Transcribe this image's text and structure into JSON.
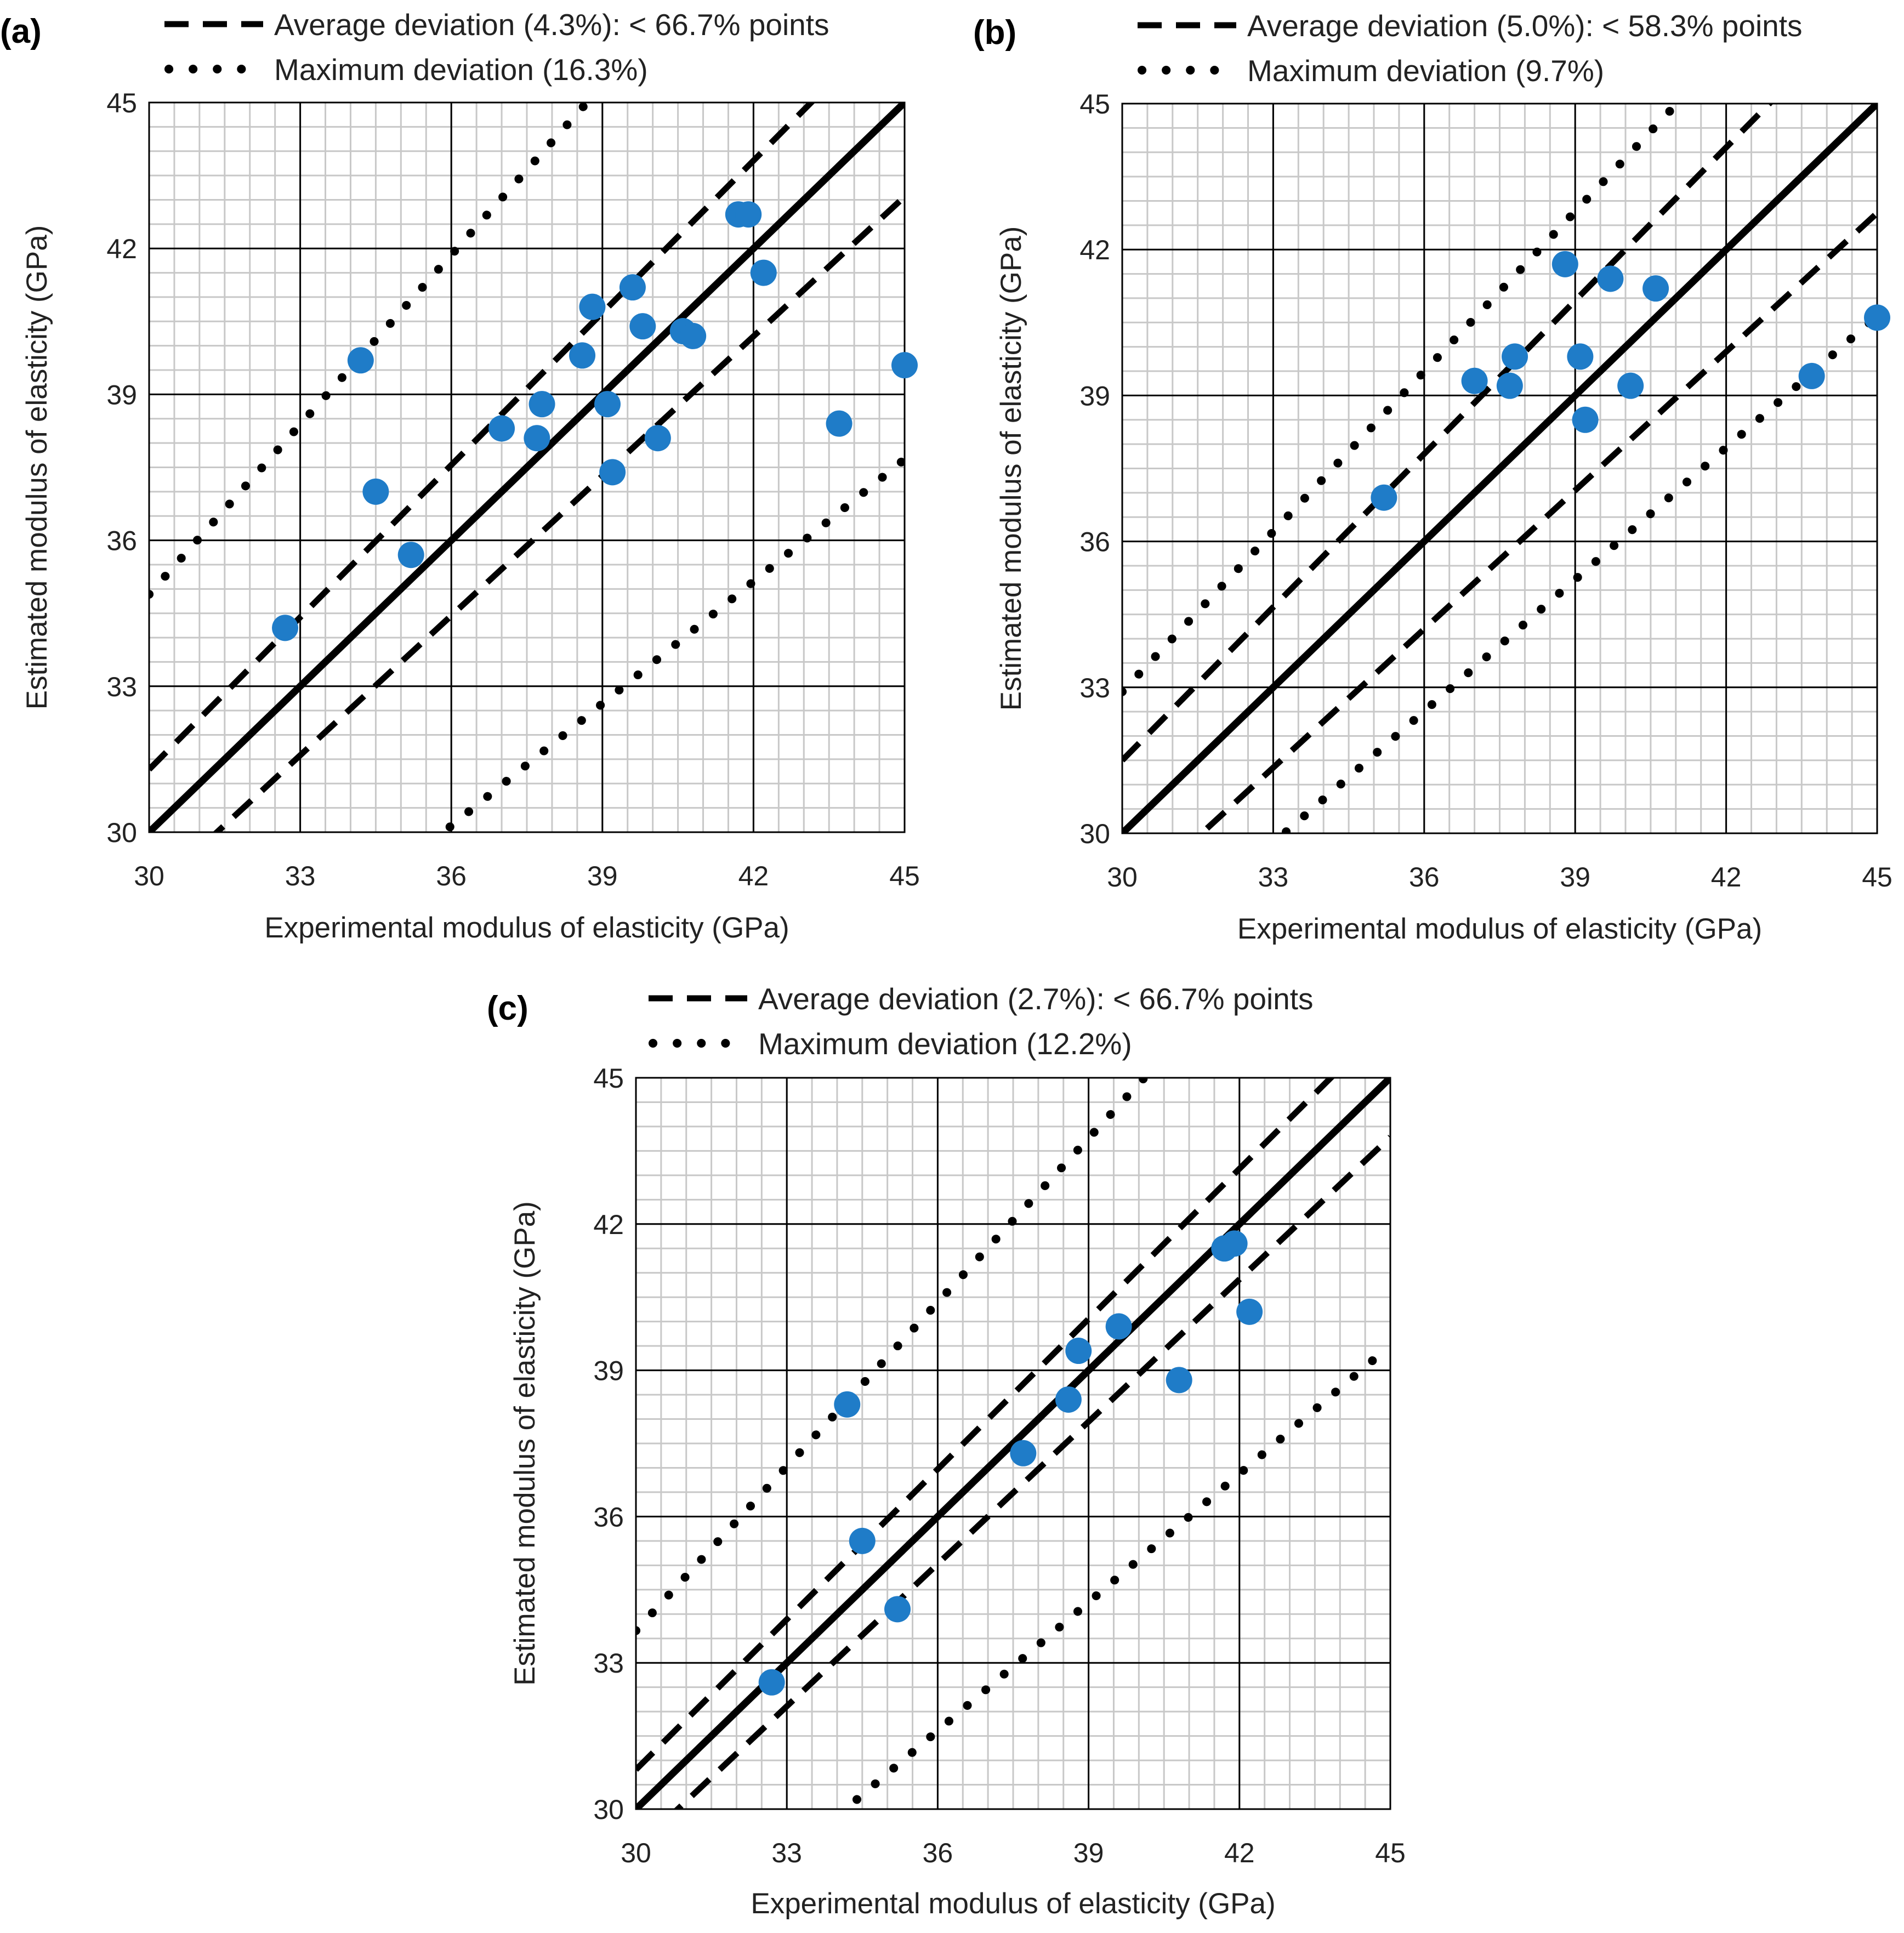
{
  "colors": {
    "points": "#1f7cc8",
    "lines": "#000000",
    "grid_minor": "#c8c8c8",
    "grid_major": "#000000"
  },
  "chart_data": [
    {
      "type": "scatter",
      "panel_label": "(a)",
      "xlabel": "Experimental modulus of elasticity (GPa)",
      "ylabel": "Estimated modulus of elasticity (GPa)",
      "xlim": [
        30,
        45
      ],
      "ylim": [
        30,
        45
      ],
      "x_ticks": [
        30,
        33,
        36,
        39,
        42,
        45
      ],
      "y_ticks": [
        30,
        33,
        36,
        39,
        42,
        45
      ],
      "legend": [
        {
          "style": "dashed",
          "label": "Average deviation (4.3%): < 66.7% points"
        },
        {
          "style": "dotted",
          "label": "Maximum deviation (16.3%)"
        }
      ],
      "avg_deviation": 0.043,
      "max_deviation": 0.163,
      "points": [
        {
          "x": 32.7,
          "y": 34.2
        },
        {
          "x": 34.2,
          "y": 39.7
        },
        {
          "x": 34.5,
          "y": 37.0
        },
        {
          "x": 35.2,
          "y": 35.7
        },
        {
          "x": 37.0,
          "y": 38.3
        },
        {
          "x": 37.7,
          "y": 38.1
        },
        {
          "x": 37.8,
          "y": 38.8
        },
        {
          "x": 38.6,
          "y": 39.8
        },
        {
          "x": 38.8,
          "y": 40.8
        },
        {
          "x": 39.1,
          "y": 38.8
        },
        {
          "x": 39.2,
          "y": 37.4
        },
        {
          "x": 39.6,
          "y": 41.2
        },
        {
          "x": 39.8,
          "y": 40.4
        },
        {
          "x": 40.1,
          "y": 38.1
        },
        {
          "x": 40.6,
          "y": 40.3
        },
        {
          "x": 40.8,
          "y": 40.2
        },
        {
          "x": 41.7,
          "y": 42.7
        },
        {
          "x": 41.9,
          "y": 42.7
        },
        {
          "x": 42.2,
          "y": 41.5
        },
        {
          "x": 43.7,
          "y": 38.4
        },
        {
          "x": 45.0,
          "y": 39.6
        }
      ]
    },
    {
      "type": "scatter",
      "panel_label": "(b)",
      "xlabel": "Experimental modulus of elasticity (GPa)",
      "ylabel": "Estimated modulus of elasticity (GPa)",
      "xlim": [
        30,
        45
      ],
      "ylim": [
        30,
        45
      ],
      "x_ticks": [
        30,
        33,
        36,
        39,
        42,
        45
      ],
      "y_ticks": [
        30,
        33,
        36,
        39,
        42,
        45
      ],
      "legend": [
        {
          "style": "dashed",
          "label": "Average deviation (5.0%): < 58.3% points"
        },
        {
          "style": "dotted",
          "label": "Maximum deviation (9.7%)"
        }
      ],
      "avg_deviation": 0.05,
      "max_deviation": 0.097,
      "points": [
        {
          "x": 35.2,
          "y": 36.9
        },
        {
          "x": 37.0,
          "y": 39.3
        },
        {
          "x": 37.7,
          "y": 39.2
        },
        {
          "x": 37.8,
          "y": 39.8
        },
        {
          "x": 38.8,
          "y": 41.7
        },
        {
          "x": 39.1,
          "y": 39.8
        },
        {
          "x": 39.2,
          "y": 38.5
        },
        {
          "x": 39.7,
          "y": 41.4
        },
        {
          "x": 40.1,
          "y": 39.2
        },
        {
          "x": 40.6,
          "y": 41.2
        },
        {
          "x": 43.7,
          "y": 39.4
        },
        {
          "x": 45.0,
          "y": 40.6
        }
      ]
    },
    {
      "type": "scatter",
      "panel_label": "(c)",
      "xlabel": "Experimental modulus of elasticity (GPa)",
      "ylabel": "Estimated modulus of elasticity (GPa)",
      "xlim": [
        30,
        45
      ],
      "ylim": [
        30,
        45
      ],
      "x_ticks": [
        30,
        33,
        36,
        39,
        42,
        45
      ],
      "y_ticks": [
        30,
        33,
        36,
        39,
        42,
        45
      ],
      "legend": [
        {
          "style": "dashed",
          "label": "Average deviation (2.7%): < 66.7% points"
        },
        {
          "style": "dotted",
          "label": "Maximum deviation (12.2%)"
        }
      ],
      "avg_deviation": 0.027,
      "max_deviation": 0.122,
      "points": [
        {
          "x": 32.7,
          "y": 32.6
        },
        {
          "x": 34.2,
          "y": 38.3
        },
        {
          "x": 34.5,
          "y": 35.5
        },
        {
          "x": 35.2,
          "y": 34.1
        },
        {
          "x": 37.7,
          "y": 37.3
        },
        {
          "x": 38.6,
          "y": 38.4
        },
        {
          "x": 38.8,
          "y": 39.4
        },
        {
          "x": 39.6,
          "y": 39.9
        },
        {
          "x": 40.8,
          "y": 38.8
        },
        {
          "x": 41.7,
          "y": 41.5
        },
        {
          "x": 41.9,
          "y": 41.6
        },
        {
          "x": 42.2,
          "y": 40.2
        }
      ]
    }
  ]
}
